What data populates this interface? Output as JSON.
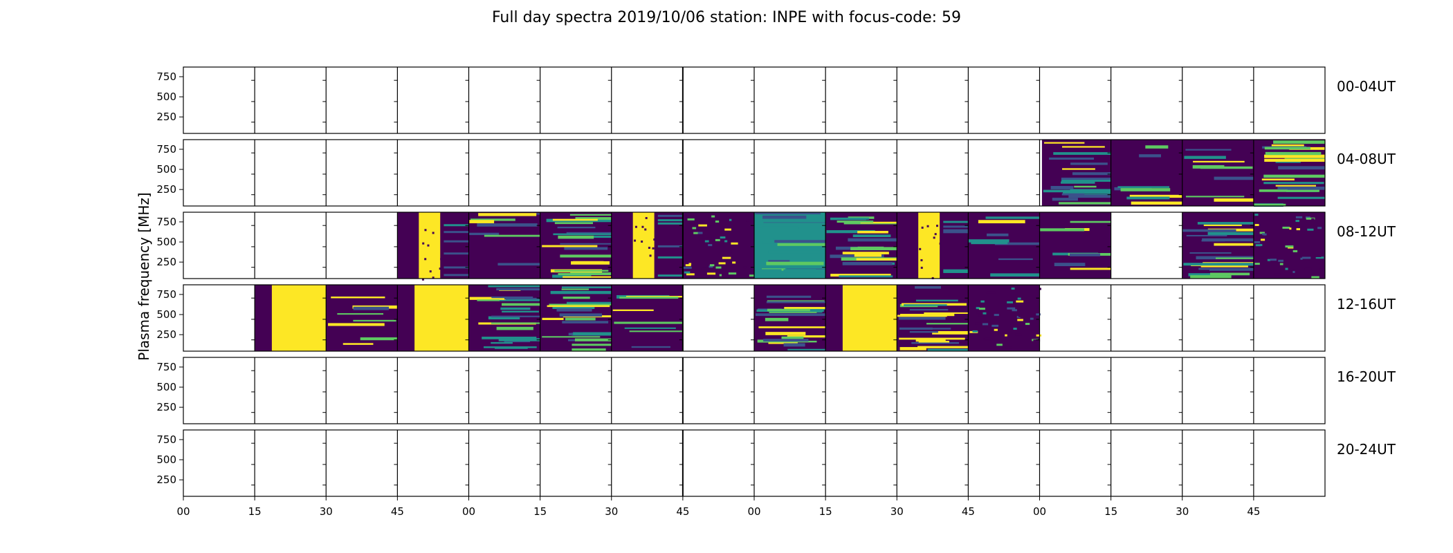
{
  "chart_data": {
    "type": "heatmap",
    "title": "Full day spectra 2019/10/06 station: INPE with focus-code: 59",
    "ylabel": "Plasma frequency [MHz]",
    "yticks": [
      "750",
      "500",
      "250"
    ],
    "ytick_values": [
      750,
      500,
      250
    ],
    "ylim": [
      45,
      870
    ],
    "xticks": [
      "00",
      "15",
      "30",
      "45",
      "00",
      "15",
      "30",
      "45",
      "00",
      "15",
      "30",
      "45",
      "00",
      "15",
      "30",
      "45"
    ],
    "xtick_minutes": [
      0,
      15,
      30,
      45,
      60,
      75,
      90,
      105,
      120,
      135,
      150,
      165,
      180,
      195,
      210,
      225
    ],
    "xlim_minutes": [
      0,
      240
    ],
    "columns_per_row": 16,
    "column_minutes": 15,
    "colormap": [
      "#440154",
      "#3b528b",
      "#21918c",
      "#5ec962",
      "#fde725"
    ],
    "rows": [
      {
        "label": "00-04UT",
        "segments": []
      },
      {
        "label": "04-08UT",
        "segments": [
          {
            "start": 180.5,
            "end": 195,
            "pattern": "lines",
            "seed": 11
          },
          {
            "start": 195,
            "end": 210,
            "pattern": "dark",
            "seed": 12
          },
          {
            "start": 210,
            "end": 225,
            "pattern": "dark",
            "seed": 13
          },
          {
            "start": 225,
            "end": 240,
            "pattern": "lines",
            "seed": 14
          }
        ]
      },
      {
        "label": "08-12UT",
        "segments": [
          {
            "start": 45,
            "end": 60,
            "pattern": "band",
            "seed": 21
          },
          {
            "start": 60,
            "end": 75,
            "pattern": "dark",
            "seed": 22
          },
          {
            "start": 75,
            "end": 90,
            "pattern": "lines",
            "seed": 23
          },
          {
            "start": 90,
            "end": 105,
            "pattern": "band",
            "seed": 24
          },
          {
            "start": 105,
            "end": 120,
            "pattern": "noise",
            "seed": 25
          },
          {
            "start": 120,
            "end": 135,
            "pattern": "green",
            "seed": 26
          },
          {
            "start": 135,
            "end": 150,
            "pattern": "lines",
            "seed": 27
          },
          {
            "start": 150,
            "end": 165,
            "pattern": "band",
            "seed": 28
          },
          {
            "start": 165,
            "end": 180,
            "pattern": "dark",
            "seed": 29
          },
          {
            "start": 180,
            "end": 195,
            "pattern": "dark",
            "seed": 30
          },
          {
            "start": 210,
            "end": 225,
            "pattern": "lines",
            "seed": 31
          },
          {
            "start": 225,
            "end": 240,
            "pattern": "noise",
            "seed": 32
          }
        ]
      },
      {
        "label": "12-16UT",
        "segments": [
          {
            "start": 15,
            "end": 30,
            "pattern": "yellow",
            "seed": 41
          },
          {
            "start": 30,
            "end": 45,
            "pattern": "dark",
            "seed": 42
          },
          {
            "start": 45,
            "end": 60,
            "pattern": "yellow",
            "seed": 43
          },
          {
            "start": 60,
            "end": 75,
            "pattern": "lines",
            "seed": 44
          },
          {
            "start": 75,
            "end": 90,
            "pattern": "lines",
            "seed": 45
          },
          {
            "start": 90,
            "end": 105,
            "pattern": "dark",
            "seed": 46
          },
          {
            "start": 120,
            "end": 135,
            "pattern": "lines",
            "seed": 47
          },
          {
            "start": 135,
            "end": 150,
            "pattern": "yellow",
            "seed": 48
          },
          {
            "start": 150,
            "end": 165,
            "pattern": "lines",
            "seed": 49
          },
          {
            "start": 165,
            "end": 180,
            "pattern": "noise",
            "seed": 50
          }
        ]
      },
      {
        "label": "16-20UT",
        "segments": []
      },
      {
        "label": "20-24UT",
        "segments": []
      }
    ]
  }
}
